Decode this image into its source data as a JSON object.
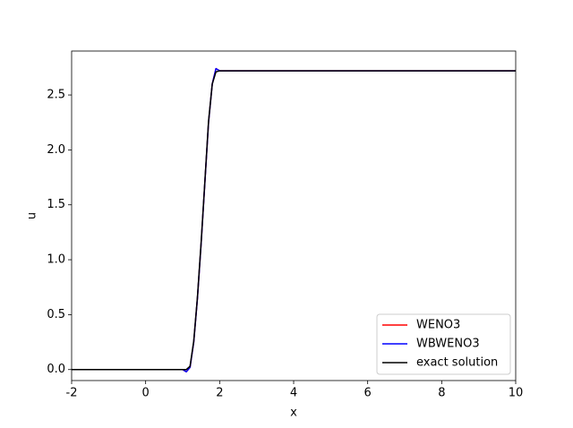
{
  "chart_data": {
    "type": "line",
    "x_label": "x",
    "y_label": "u",
    "x": [
      -2,
      -1,
      0,
      0.5,
      1.0,
      1.1,
      1.2,
      1.3,
      1.4,
      1.5,
      1.6,
      1.7,
      1.8,
      1.9,
      2.0,
      3,
      4,
      5,
      6,
      7,
      8,
      9,
      10
    ],
    "series": [
      {
        "name": "WENO3",
        "color": "#ff0000",
        "values": [
          0,
          0,
          0,
          0,
          0,
          -0.02,
          0.02,
          0.25,
          0.65,
          1.15,
          1.7,
          2.25,
          2.6,
          2.74,
          2.72,
          2.72,
          2.72,
          2.72,
          2.72,
          2.72,
          2.72,
          2.72,
          2.72
        ]
      },
      {
        "name": "WBWENO3",
        "color": "#0000ff",
        "values": [
          0,
          0,
          0,
          0,
          0,
          -0.02,
          0.02,
          0.25,
          0.65,
          1.15,
          1.7,
          2.25,
          2.6,
          2.74,
          2.72,
          2.72,
          2.72,
          2.72,
          2.72,
          2.72,
          2.72,
          2.72,
          2.72
        ]
      },
      {
        "name": "exact solution",
        "color": "#000000",
        "values": [
          0,
          0,
          0,
          0,
          0,
          0,
          0.03,
          0.26,
          0.66,
          1.16,
          1.71,
          2.26,
          2.6,
          2.71,
          2.72,
          2.72,
          2.72,
          2.72,
          2.72,
          2.72,
          2.72,
          2.72,
          2.72
        ]
      }
    ],
    "xlim": [
      -2,
      10
    ],
    "ylim": [
      -0.1,
      2.9
    ],
    "xticks": [
      -2,
      0,
      2,
      4,
      6,
      8,
      10
    ],
    "yticks": [
      {
        "value": 0,
        "label": "0.0"
      },
      0.5,
      {
        "value": 1,
        "label": "1.0"
      },
      1.5,
      {
        "value": 2,
        "label": "2.0"
      },
      2.5
    ],
    "legend": "lower right"
  }
}
